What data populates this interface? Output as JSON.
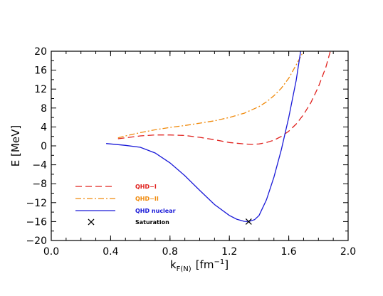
{
  "chart_data": {
    "type": "line",
    "title": "",
    "xlabel": {
      "main": "k",
      "sub": "F(N)",
      "unit_open": "[fm",
      "unit_exp": "−1",
      "unit_close": "]"
    },
    "ylabel": "E  [MeV]",
    "xlim": [
      0.0,
      2.0
    ],
    "ylim": [
      -20,
      20
    ],
    "xticks": [
      0.0,
      0.4,
      0.8,
      1.2,
      1.6,
      2.0
    ],
    "xtick_labels": [
      "0.0",
      "0.4",
      "0.8",
      "1.2",
      "1.6",
      "2.0"
    ],
    "yticks": [
      -20,
      -16,
      -12,
      -8,
      -4,
      0,
      4,
      8,
      12,
      16,
      20
    ],
    "ytick_labels": [
      "−20",
      "−16",
      "−12",
      "−8",
      "−4",
      "0",
      "4",
      "8",
      "12",
      "16",
      "20"
    ],
    "grid": false,
    "legend_position": "bottom-left",
    "series": [
      {
        "name": "QHD−I",
        "color": "#e0201c",
        "style": "dashed",
        "x": [
          0.45,
          0.5,
          0.6,
          0.7,
          0.8,
          0.9,
          1.0,
          1.1,
          1.2,
          1.3,
          1.35,
          1.4,
          1.45,
          1.5,
          1.55,
          1.6,
          1.65,
          1.7,
          1.75,
          1.8,
          1.85,
          1.88
        ],
        "y": [
          1.5,
          1.7,
          2.1,
          2.3,
          2.3,
          2.2,
          1.8,
          1.3,
          0.7,
          0.4,
          0.3,
          0.4,
          0.7,
          1.2,
          2.0,
          3.1,
          4.6,
          6.6,
          9.2,
          12.5,
          16.6,
          20.0
        ]
      },
      {
        "name": "QHD−II",
        "color": "#f08a0c",
        "style": "dashdot",
        "x": [
          0.45,
          0.5,
          0.6,
          0.7,
          0.8,
          0.9,
          1.0,
          1.1,
          1.2,
          1.3,
          1.4,
          1.45,
          1.5,
          1.55,
          1.6,
          1.65,
          1.7
        ],
        "y": [
          1.7,
          2.1,
          2.8,
          3.4,
          3.9,
          4.3,
          4.8,
          5.3,
          6.0,
          6.9,
          8.3,
          9.3,
          10.6,
          12.2,
          14.3,
          17.1,
          20.0
        ]
      },
      {
        "name": "QHD nuclear",
        "color": "#1a1ad8",
        "style": "solid",
        "x": [
          0.37,
          0.5,
          0.6,
          0.7,
          0.8,
          0.9,
          1.0,
          1.1,
          1.2,
          1.25,
          1.3,
          1.33,
          1.37,
          1.4,
          1.45,
          1.5,
          1.55,
          1.6,
          1.65,
          1.68
        ],
        "y": [
          0.5,
          0.1,
          -0.3,
          -1.5,
          -3.6,
          -6.3,
          -9.4,
          -12.4,
          -14.7,
          -15.5,
          -15.95,
          -16.0,
          -15.6,
          -14.7,
          -11.4,
          -6.6,
          -0.8,
          6.0,
          13.8,
          20.0
        ]
      }
    ],
    "markers": [
      {
        "name": "Saturation",
        "symbol": "x",
        "color": "#000000",
        "x": 1.33,
        "y": -16.0
      }
    ]
  }
}
